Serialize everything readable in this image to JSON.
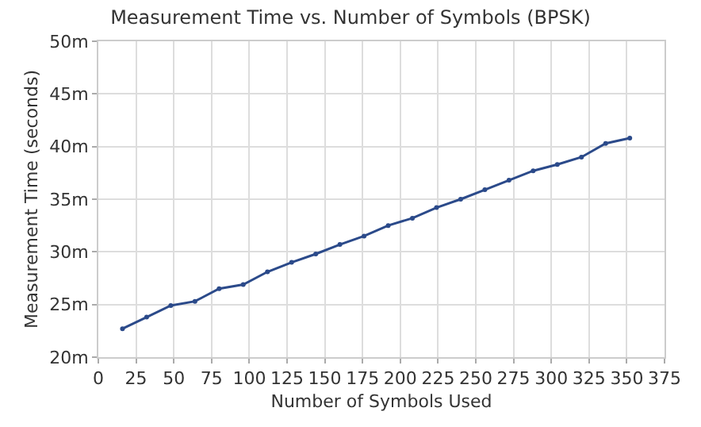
{
  "chart_data": {
    "type": "line",
    "title": "Measurement Time vs. Number of Symbols (BPSK)",
    "xlabel": "Number of Symbols Used",
    "ylabel": "Measurement Time (seconds)",
    "x": [
      16,
      32,
      48,
      64,
      80,
      96,
      112,
      128,
      144,
      160,
      176,
      192,
      208,
      224,
      240,
      256,
      272,
      288,
      304,
      320,
      336,
      352
    ],
    "series": [
      {
        "color": "#2b4a8a",
        "values": [
          22.7,
          23.8,
          24.9,
          25.3,
          26.5,
          26.9,
          28.1,
          29.0,
          29.8,
          30.7,
          31.5,
          32.5,
          33.2,
          34.2,
          35.0,
          35.9,
          36.8,
          37.7,
          38.3,
          39.0,
          40.3,
          40.8
        ]
      }
    ],
    "xlim": [
      0,
      375
    ],
    "xticks": [
      0,
      25,
      50,
      75,
      100,
      125,
      150,
      175,
      200,
      225,
      250,
      275,
      300,
      325,
      350,
      375
    ],
    "ylim": [
      20,
      50
    ],
    "yticks": [
      {
        "value": 20,
        "label": "20m"
      },
      {
        "value": 25,
        "label": "25m"
      },
      {
        "value": 30,
        "label": "30m"
      },
      {
        "value": 35,
        "label": "35m"
      },
      {
        "value": 40,
        "label": "40m"
      },
      {
        "value": 45,
        "label": "45m"
      },
      {
        "value": 50,
        "label": "50m"
      }
    ],
    "grid": true,
    "marker": "circle",
    "line_style": "solid"
  }
}
